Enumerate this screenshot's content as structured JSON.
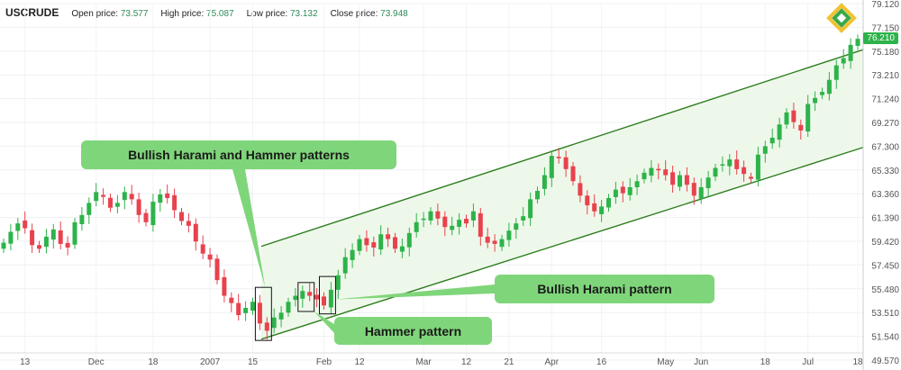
{
  "header": {
    "symbol": "USCRUDE",
    "open_label": "Open price:",
    "open_value": "73.577",
    "high_label": "High price:",
    "high_value": "75.087",
    "low_label": "Low price:",
    "low_value": "73.132",
    "close_label": "Close price:",
    "close_value": "73.948"
  },
  "current_price": "76.210",
  "callouts": {
    "harami_hammer": "Bullish Harami and Hammer patterns",
    "harami": "Bullish Harami pattern",
    "hammer": "Hammer pattern"
  },
  "colors": {
    "bull": "#2db34a",
    "bear": "#e8424e",
    "channel": "#2e7d1f",
    "channel_fill": "#eef8ea",
    "callout": "#7fd67a"
  },
  "chart_data": {
    "type": "candlestick",
    "title": "",
    "xlabel": "",
    "ylabel": "",
    "ylim": [
      49.57,
      79.12
    ],
    "y_ticks": [
      "79.120",
      "77.150",
      "75.180",
      "73.210",
      "71.240",
      "69.270",
      "67.300",
      "65.330",
      "63.360",
      "61.390",
      "59.420",
      "57.450",
      "55.480",
      "53.510",
      "51.540",
      "49.570"
    ],
    "x_ticks": [
      "13",
      "Dec",
      "18",
      "2007",
      "15",
      "Feb",
      "12",
      "Mar",
      "12",
      "21",
      "Apr",
      "16",
      "May",
      "Jun",
      "18",
      "Jul",
      "18"
    ],
    "channel": {
      "upper": {
        "from": [
          0.0,
          59.0
        ],
        "to": [
          1.0,
          75.3
        ]
      },
      "lower": {
        "from": [
          0.0,
          51.3
        ],
        "to": [
          1.0,
          67.2
        ]
      }
    },
    "closes": [
      59.3,
      60.2,
      60.9,
      60.5,
      59.1,
      58.8,
      59.8,
      60.4,
      59.2,
      58.9,
      61.0,
      61.6,
      62.6,
      63.5,
      63.1,
      62.2,
      62.6,
      63.5,
      62.9,
      61.6,
      61.0,
      62.7,
      63.3,
      63.0,
      62.0,
      61.1,
      60.7,
      59.4,
      58.4,
      57.9,
      56.2,
      54.9,
      54.3,
      53.3,
      53.9,
      54.4,
      52.6,
      52.0,
      53.1,
      53.5,
      54.4,
      54.9,
      55.3,
      54.9,
      54.6,
      54.1,
      55.4,
      56.6,
      58.1,
      58.7,
      59.6,
      59.1,
      58.9,
      60.0,
      59.6,
      58.8,
      59.0,
      60.1,
      61.0,
      61.3,
      61.9,
      61.3,
      60.6,
      60.7,
      61.2,
      60.9,
      61.9,
      59.8,
      59.3,
      59.2,
      59.6,
      60.3,
      60.9,
      61.5,
      62.9,
      63.6,
      64.9,
      66.5,
      66.3,
      65.4,
      64.4,
      63.2,
      62.4,
      61.9,
      62.3,
      63.0,
      63.7,
      63.4,
      63.9,
      64.4,
      65.1,
      65.5,
      65.3,
      64.9,
      64.1,
      64.9,
      64.1,
      63.2,
      63.9,
      64.7,
      65.5,
      65.8,
      66.2,
      65.4,
      65.0,
      64.6,
      66.6,
      67.3,
      68.0,
      69.1,
      70.1,
      69.3,
      68.6,
      70.8,
      71.3,
      71.8,
      72.8,
      74.0,
      74.6,
      75.7,
      76.2
    ]
  }
}
